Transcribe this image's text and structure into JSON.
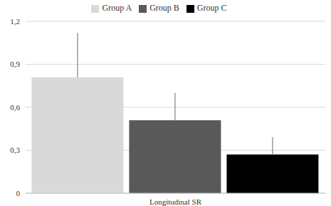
{
  "chart_data": {
    "type": "bar",
    "categories": [
      "Longitudinal SR"
    ],
    "series": [
      {
        "name": "Group A",
        "color": "#d9d9d9",
        "values": [
          0.81
        ],
        "errors": [
          0.31
        ]
      },
      {
        "name": "Group B",
        "color": "#595959",
        "values": [
          0.51
        ],
        "errors": [
          0.19
        ]
      },
      {
        "name": "Group C",
        "color": "#000000",
        "values": [
          0.27
        ],
        "errors": [
          0.12
        ]
      }
    ],
    "ylim": [
      0,
      1.2
    ],
    "yticks": [
      0,
      {
        "value": 0.3,
        "label": "0,3"
      },
      {
        "value": 0.6,
        "label": "0,6"
      },
      {
        "value": 0.9,
        "label": "0,9"
      },
      {
        "value": 1.2,
        "label": "1,2"
      }
    ],
    "grid": true,
    "legend": "top"
  }
}
